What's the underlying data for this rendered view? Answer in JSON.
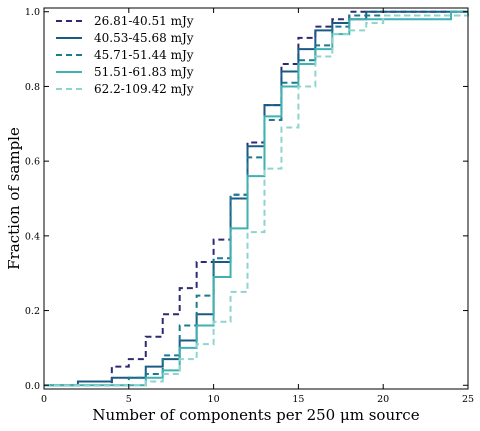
{
  "chart_data": {
    "type": "line",
    "step": true,
    "xlabel": "Number of components per 250 μm source",
    "ylabel": "Fraction of sample",
    "xlim": [
      0,
      25
    ],
    "ylim": [
      -0.01,
      1.01
    ],
    "xticks": [
      0,
      5,
      10,
      15,
      20,
      25
    ],
    "yticks": [
      0.0,
      0.2,
      0.4,
      0.6,
      0.8,
      1.0
    ],
    "xtick_labels": [
      "0",
      "5",
      "10",
      "15",
      "20",
      "25"
    ],
    "ytick_labels": [
      "0.0",
      "0.2",
      "0.4",
      "0.6",
      "0.8",
      "1.0"
    ],
    "grid": false,
    "legend_position": "top-left",
    "series": [
      {
        "name": "26.81-40.51 mJy",
        "color": "#2e2a72",
        "style": "dashed",
        "x": [
          0,
          4,
          5,
          6,
          7,
          8,
          9,
          10,
          11,
          12,
          13,
          14,
          15,
          16,
          17,
          18,
          25
        ],
        "y": [
          0.0,
          0.05,
          0.07,
          0.13,
          0.19,
          0.26,
          0.33,
          0.39,
          0.51,
          0.65,
          0.75,
          0.86,
          0.93,
          0.96,
          0.98,
          1.0,
          1.0
        ]
      },
      {
        "name": "40.53-45.68 mJy",
        "color": "#1c5a86",
        "style": "solid",
        "x": [
          0,
          2,
          4,
          6,
          7,
          8,
          9,
          10,
          11,
          12,
          13,
          14,
          15,
          16,
          17,
          18,
          19,
          25
        ],
        "y": [
          0.0,
          0.01,
          0.02,
          0.05,
          0.07,
          0.12,
          0.19,
          0.33,
          0.5,
          0.64,
          0.75,
          0.84,
          0.9,
          0.95,
          0.97,
          0.98,
          1.0,
          1.0
        ]
      },
      {
        "name": "45.71-51.44 mJy",
        "color": "#1a7a8e",
        "style": "dashed",
        "x": [
          0,
          5,
          6,
          7,
          8,
          9,
          10,
          11,
          12,
          13,
          14,
          15,
          16,
          17,
          18,
          25
        ],
        "y": [
          0.0,
          0.02,
          0.03,
          0.08,
          0.16,
          0.24,
          0.34,
          0.51,
          0.61,
          0.71,
          0.81,
          0.87,
          0.91,
          0.96,
          0.99,
          1.0
        ]
      },
      {
        "name": "51.51-61.83 mJy",
        "color": "#3fb1b2",
        "style": "solid",
        "x": [
          0,
          6,
          7,
          8,
          9,
          10,
          11,
          12,
          13,
          14,
          15,
          16,
          17,
          18,
          24,
          25
        ],
        "y": [
          0.0,
          0.02,
          0.04,
          0.1,
          0.16,
          0.29,
          0.42,
          0.56,
          0.72,
          0.8,
          0.86,
          0.9,
          0.94,
          0.98,
          1.0,
          1.0
        ]
      },
      {
        "name": "62.2-109.42 mJy",
        "color": "#8fd4cf",
        "style": "dashed",
        "x": [
          0,
          6,
          7,
          8,
          9,
          10,
          11,
          12,
          13,
          14,
          15,
          16,
          17,
          18,
          19,
          20,
          25
        ],
        "y": [
          0.0,
          0.01,
          0.03,
          0.07,
          0.11,
          0.17,
          0.25,
          0.41,
          0.58,
          0.69,
          0.8,
          0.88,
          0.94,
          0.95,
          0.97,
          0.99,
          1.0
        ]
      }
    ]
  }
}
